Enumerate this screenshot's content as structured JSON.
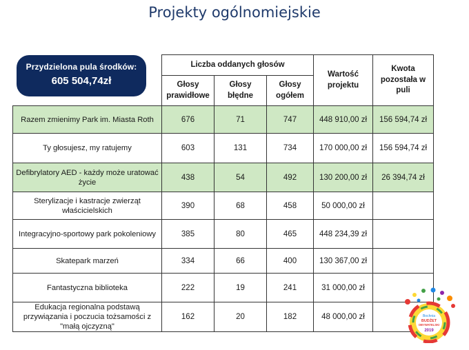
{
  "page": {
    "title": "Projekty ogólnomiejskie"
  },
  "pool": {
    "label": "Przydzielona pula środków:",
    "amount": "605 504,74zł"
  },
  "table": {
    "group_header": "Liczba oddanych głosów",
    "headers": {
      "valid": "Głosy prawidłowe",
      "invalid": "Głosy błędne",
      "total": "Głosy ogółem",
      "value": "Wartość projektu",
      "remaining": "Kwota pozostała w puli"
    },
    "rows": [
      {
        "name": "Razem zmienimy Park im. Miasta Roth",
        "valid": "676",
        "invalid": "71",
        "total": "747",
        "value": "448 910,00 zł",
        "remaining": "156 594,74 zł",
        "highlight": true
      },
      {
        "name": "Ty głosujesz, my ratujemy",
        "valid": "603",
        "invalid": "131",
        "total": "734",
        "value": "170 000,00 zł",
        "remaining": "156 594,74 zł",
        "highlight": false
      },
      {
        "name": "Defibrylatory AED - każdy może uratować życie",
        "valid": "438",
        "invalid": "54",
        "total": "492",
        "value": "130 200,00 zł",
        "remaining": "26 394,74 zł",
        "highlight": true
      },
      {
        "name": "Sterylizacje i kastracje zwierząt właścicielskich",
        "valid": "390",
        "invalid": "68",
        "total": "458",
        "value": "50 000,00 zł",
        "remaining": "",
        "highlight": false
      },
      {
        "name": "Integracyjno-sportowy park pokoleniowy",
        "valid": "385",
        "invalid": "80",
        "total": "465",
        "value": "448 234,39 zł",
        "remaining": "",
        "highlight": false
      },
      {
        "name": "Skatepark marzeń",
        "valid": "334",
        "invalid": "66",
        "total": "400",
        "value": "130 367,00 zł",
        "remaining": "",
        "highlight": false
      },
      {
        "name": "Fantastyczna biblioteka",
        "valid": "222",
        "invalid": "19",
        "total": "241",
        "value": "31 000,00 zł",
        "remaining": "",
        "highlight": false
      },
      {
        "name": "Edukacja regionalna podstawą przywiązania i poczucia tożsamości z \"małą ojczyzną\"",
        "valid": "162",
        "invalid": "20",
        "total": "182",
        "value": "48 000,00 zł",
        "remaining": "",
        "highlight": false
      }
    ]
  },
  "logo": {
    "icon": "budget-logo-icon",
    "text_lines": [
      "Bochnia",
      "BUDŻET",
      "OBYWATELSKI",
      "2019"
    ],
    "colors": [
      "#e53935",
      "#fb8c00",
      "#fdd835",
      "#43a047",
      "#1e88e5",
      "#8e24aa"
    ]
  }
}
